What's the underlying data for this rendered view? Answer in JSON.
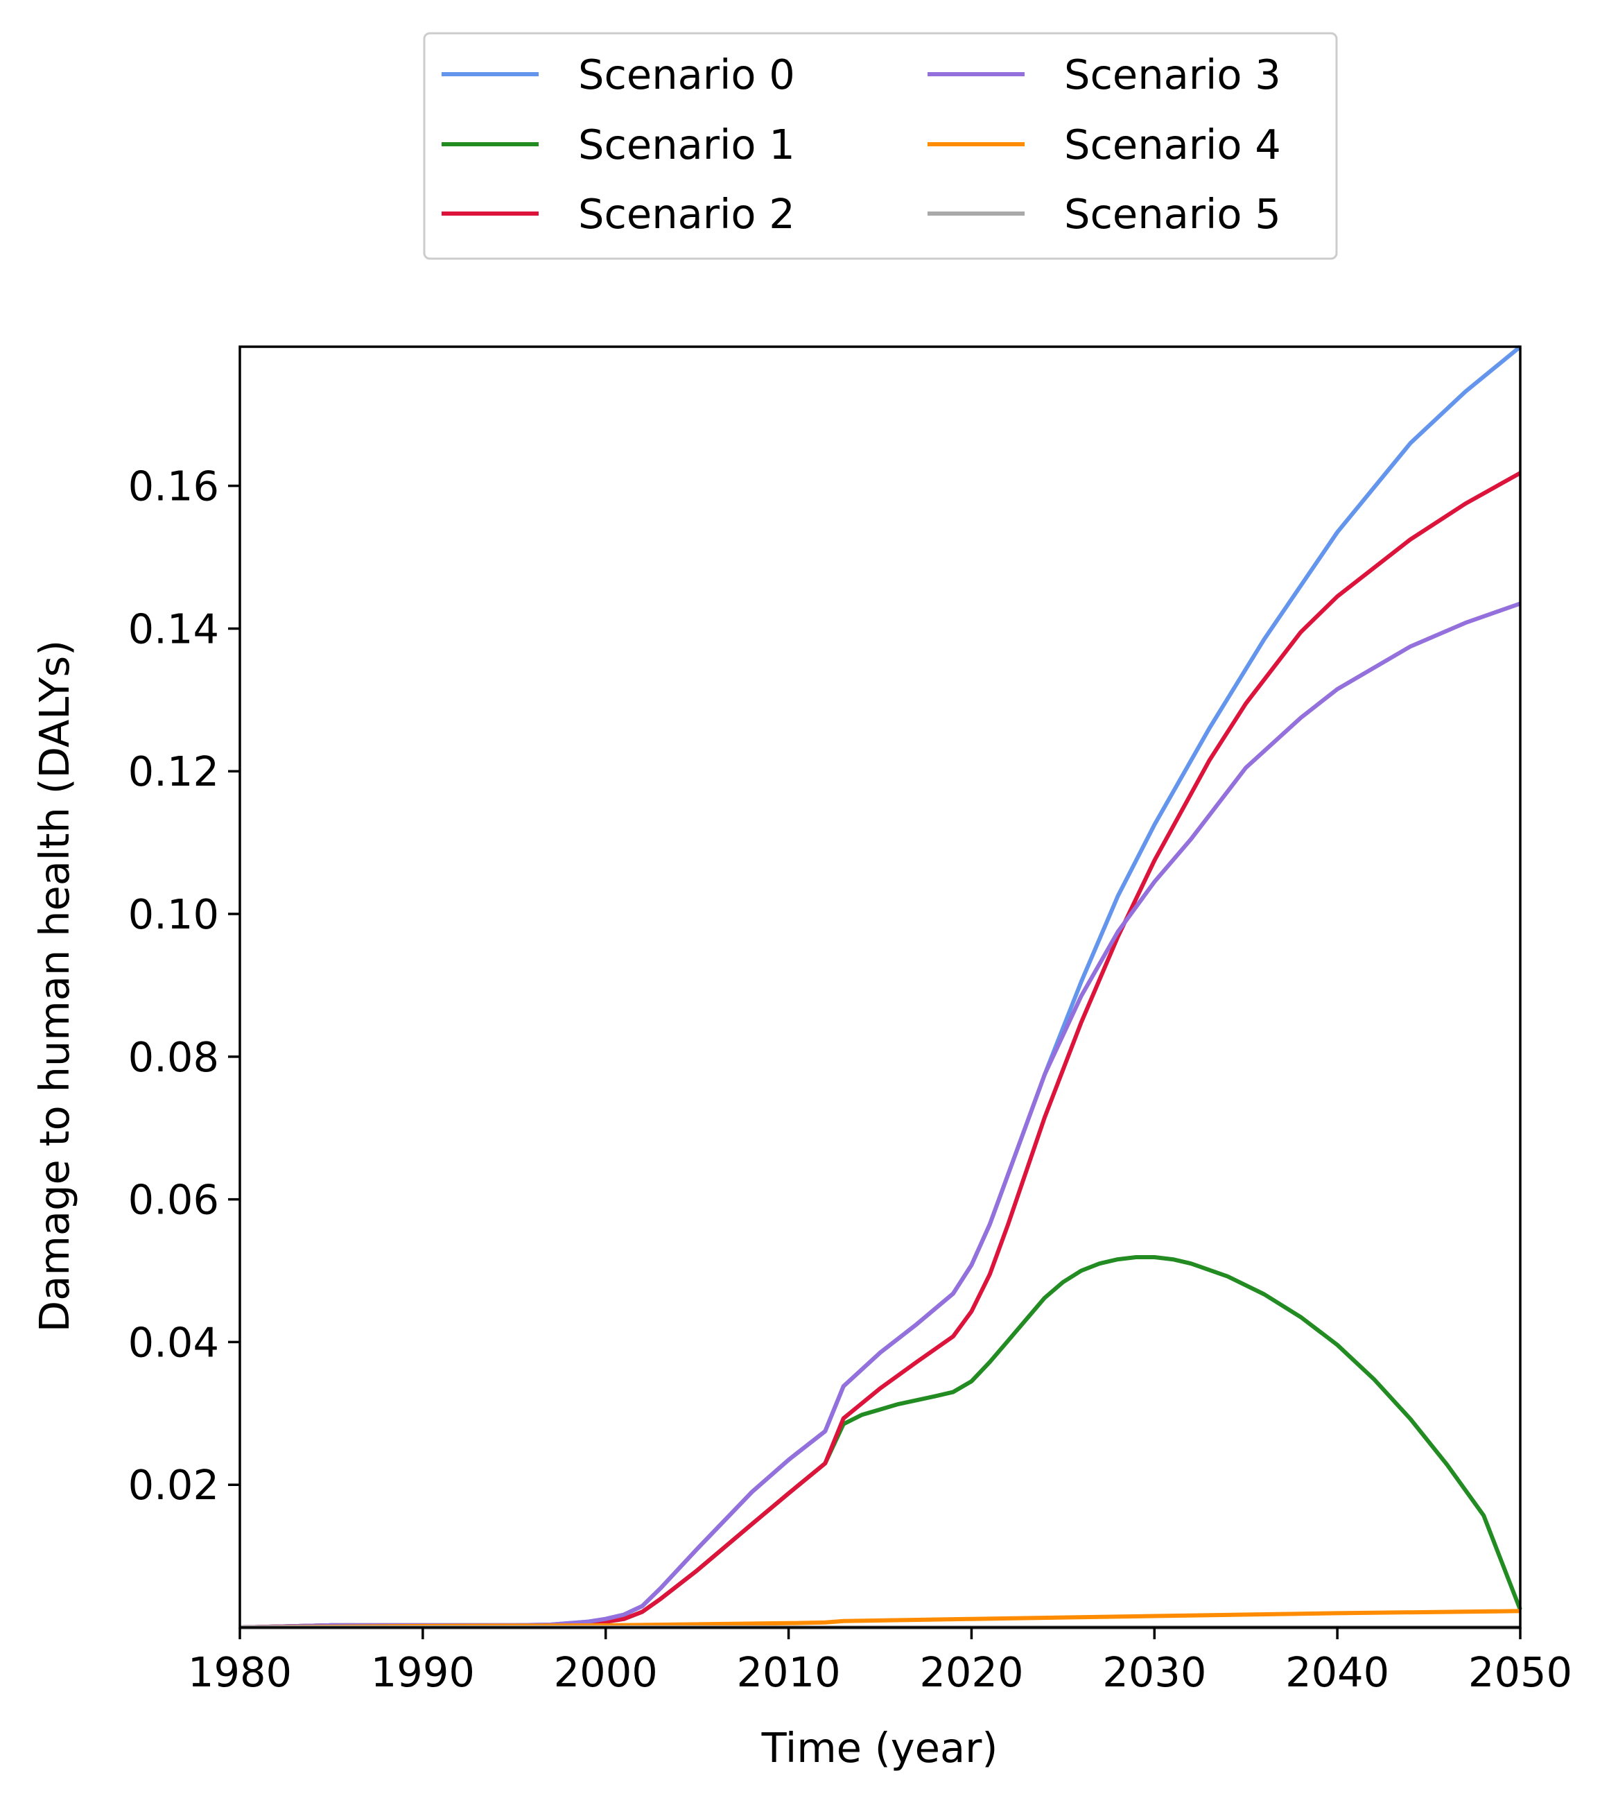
{
  "chart_data": {
    "type": "line",
    "title": "",
    "xlabel": "Time (year)",
    "ylabel": "Damage to human health (DALYs)",
    "xlim": [
      1980,
      2050
    ],
    "ylim": [
      0,
      0.1795
    ],
    "xticks": [
      1980,
      1990,
      2000,
      2010,
      2020,
      2030,
      2040,
      2050
    ],
    "xtick_labels": [
      "1980",
      "1990",
      "2000",
      "2010",
      "2020",
      "2030",
      "2040",
      "2050"
    ],
    "yticks": [
      0.02,
      0.04,
      0.06,
      0.08,
      0.1,
      0.12,
      0.14,
      0.16
    ],
    "ytick_labels": [
      "0.02",
      "0.04",
      "0.06",
      "0.08",
      "0.10",
      "0.12",
      "0.14",
      "0.16"
    ],
    "grid": false,
    "legend_position": "top-center",
    "legend_columns": 2,
    "series": [
      {
        "name": "Scenario 0",
        "color": "#6495ED",
        "x": [
          1980,
          1985,
          1990,
          1995,
          1997,
          1999,
          2000,
          2001,
          2002,
          2003,
          2005,
          2008,
          2010,
          2012,
          2013,
          2015,
          2017,
          2019,
          2020,
          2021,
          2022,
          2024,
          2026,
          2028,
          2030,
          2033,
          2036,
          2040,
          2044,
          2047,
          2050
        ],
        "y": [
          0.0,
          0.0003,
          0.0003,
          0.0003,
          0.0004,
          0.0008,
          0.0012,
          0.0018,
          0.003,
          0.0055,
          0.011,
          0.019,
          0.0235,
          0.0275,
          0.0338,
          0.0385,
          0.0425,
          0.0468,
          0.0508,
          0.0565,
          0.0635,
          0.0775,
          0.0905,
          0.1025,
          0.1125,
          0.126,
          0.1385,
          0.1535,
          0.166,
          0.1732,
          0.1795
        ]
      },
      {
        "name": "Scenario 1",
        "color": "#228B22",
        "x": [
          1980,
          1985,
          1990,
          1995,
          1997,
          1999,
          2000,
          2001,
          2002,
          2003,
          2005,
          2008,
          2010,
          2012,
          2013,
          2014,
          2016,
          2018,
          2019,
          2020,
          2021,
          2022,
          2023,
          2024,
          2025,
          2026,
          2027,
          2028,
          2029,
          2030,
          2031,
          2032,
          2034,
          2036,
          2038,
          2040,
          2042,
          2044,
          2046,
          2048,
          2050
        ],
        "y": [
          0.0,
          0.0003,
          0.0003,
          0.0003,
          0.0003,
          0.0005,
          0.0008,
          0.0012,
          0.0022,
          0.004,
          0.008,
          0.0145,
          0.0188,
          0.023,
          0.0285,
          0.0298,
          0.0313,
          0.0324,
          0.033,
          0.0345,
          0.0372,
          0.0402,
          0.0432,
          0.0462,
          0.0484,
          0.05,
          0.051,
          0.0516,
          0.0519,
          0.0519,
          0.0516,
          0.051,
          0.0492,
          0.0467,
          0.0435,
          0.0396,
          0.0348,
          0.0292,
          0.0228,
          0.0157,
          0.0025
        ]
      },
      {
        "name": "Scenario 2",
        "color": "#DC143C",
        "x": [
          1980,
          1985,
          1990,
          1995,
          1997,
          1999,
          2000,
          2001,
          2002,
          2003,
          2005,
          2008,
          2010,
          2012,
          2013,
          2015,
          2017,
          2019,
          2020,
          2021,
          2022,
          2024,
          2026,
          2028,
          2030,
          2033,
          2035,
          2038,
          2040,
          2044,
          2047,
          2050
        ],
        "y": [
          0.0,
          0.0003,
          0.0003,
          0.0003,
          0.0003,
          0.0005,
          0.0008,
          0.0012,
          0.0022,
          0.004,
          0.008,
          0.0145,
          0.0188,
          0.023,
          0.0293,
          0.0335,
          0.0372,
          0.0408,
          0.0443,
          0.0495,
          0.0565,
          0.0715,
          0.0848,
          0.0968,
          0.1075,
          0.1215,
          0.1295,
          0.1395,
          0.1445,
          0.1525,
          0.1575,
          0.1618
        ]
      },
      {
        "name": "Scenario 3",
        "color": "#9370DB",
        "x": [
          1980,
          1985,
          1990,
          1995,
          1997,
          1999,
          2000,
          2001,
          2002,
          2003,
          2005,
          2008,
          2010,
          2012,
          2013,
          2015,
          2017,
          2019,
          2020,
          2021,
          2022,
          2024,
          2026,
          2028,
          2030,
          2032,
          2035,
          2038,
          2040,
          2044,
          2047,
          2050
        ],
        "y": [
          0.0,
          0.0003,
          0.0003,
          0.0003,
          0.0004,
          0.0008,
          0.0012,
          0.0018,
          0.003,
          0.0055,
          0.011,
          0.019,
          0.0235,
          0.0275,
          0.0338,
          0.0385,
          0.0425,
          0.0468,
          0.0508,
          0.0565,
          0.0635,
          0.0775,
          0.0885,
          0.0975,
          0.1045,
          0.1105,
          0.1205,
          0.1275,
          0.1315,
          0.1375,
          0.1408,
          0.1435
        ]
      },
      {
        "name": "Scenario 4",
        "color": "#FF8C00",
        "x": [
          1980,
          1985,
          1990,
          2000,
          2010,
          2012,
          2013,
          2020,
          2030,
          2040,
          2050
        ],
        "y": [
          0.0,
          0.0001,
          0.0002,
          0.0003,
          0.0006,
          0.0007,
          0.0009,
          0.0012,
          0.0016,
          0.002,
          0.0023
        ]
      },
      {
        "name": "Scenario 5",
        "color": "#A9A9A9",
        "x": [
          1980,
          2050
        ],
        "y": [
          0.0,
          0.0
        ]
      }
    ]
  }
}
